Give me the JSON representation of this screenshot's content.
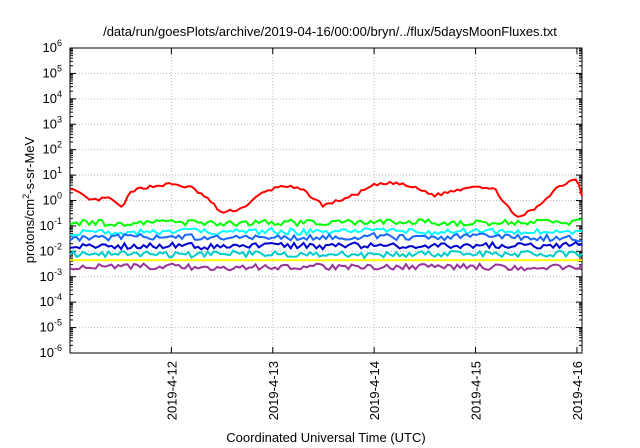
{
  "chart_data": {
    "type": "line",
    "title": "/data/run/goesPlots/archive/2019-04-16/00:00/bryn/../flux/5daysMoonFluxes.txt",
    "xlabel": "Coordinated Universal Time (UTC)",
    "ylabel": "protons/cm2-s-sr-MeV",
    "ylabel_parts": {
      "pre": "protons/cm",
      "sup": "2",
      "post": "-s-sr-MeV"
    },
    "yscale": "log",
    "ylim": [
      -6,
      6
    ],
    "xlim": [
      0,
      5.05
    ],
    "grid": true,
    "y_ticks": [
      {
        "value": -6,
        "base": "10",
        "exp": "-6"
      },
      {
        "value": -5,
        "base": "10",
        "exp": "-5"
      },
      {
        "value": -4,
        "base": "10",
        "exp": "-4"
      },
      {
        "value": -3,
        "base": "10",
        "exp": "-3"
      },
      {
        "value": -2,
        "base": "10",
        "exp": "-2"
      },
      {
        "value": -1,
        "base": "10",
        "exp": "-1"
      },
      {
        "value": 0,
        "base": "10",
        "exp": "0"
      },
      {
        "value": 1,
        "base": "10",
        "exp": "1"
      },
      {
        "value": 2,
        "base": "10",
        "exp": "2"
      },
      {
        "value": 3,
        "base": "10",
        "exp": "3"
      },
      {
        "value": 4,
        "base": "10",
        "exp": "4"
      },
      {
        "value": 5,
        "base": "10",
        "exp": "5"
      },
      {
        "value": 6,
        "base": "10",
        "exp": "6"
      }
    ],
    "x_ticks": [
      {
        "value": 1,
        "label": "2019-4-12"
      },
      {
        "value": 2,
        "label": "2019-4-13"
      },
      {
        "value": 3,
        "label": "2019-4-14"
      },
      {
        "value": 4,
        "label": "2019-4-15"
      },
      {
        "value": 5,
        "label": "2019-4-16"
      }
    ],
    "series": [
      {
        "color": "#ff0000",
        "x": [
          0,
          0.2,
          0.4,
          0.5,
          0.6,
          0.7,
          0.9,
          1.0,
          1.2,
          1.35,
          1.5,
          1.7,
          1.9,
          2.1,
          2.3,
          2.5,
          2.8,
          3.0,
          3.2,
          3.4,
          3.6,
          3.8,
          4.0,
          4.2,
          4.4,
          4.6,
          4.8,
          5.0,
          5.05
        ],
        "y": [
          0.5,
          0.0,
          0.1,
          -0.3,
          0.3,
          0.5,
          0.6,
          0.65,
          0.5,
          0.1,
          -0.5,
          -0.3,
          0.3,
          0.6,
          0.4,
          -0.2,
          0.2,
          0.6,
          0.7,
          0.5,
          0.2,
          0.4,
          0.6,
          0.4,
          -0.7,
          -0.3,
          0.5,
          0.9,
          0.2
        ]
      },
      {
        "color": "#00ff00",
        "x": [
          0,
          0.5,
          1.0,
          1.5,
          2.0,
          2.5,
          3.0,
          3.5,
          4.0,
          4.5,
          5.0,
          5.05
        ],
        "y": [
          -0.85,
          -0.9,
          -0.85,
          -0.9,
          -0.85,
          -0.9,
          -0.85,
          -0.85,
          -0.9,
          -0.85,
          -0.85,
          -0.85
        ]
      },
      {
        "color": "#00ffff",
        "x": [
          0,
          0.5,
          1.0,
          1.5,
          2.0,
          2.5,
          3.0,
          3.5,
          4.0,
          4.5,
          5.0,
          5.05
        ],
        "y": [
          -1.25,
          -1.25,
          -1.2,
          -1.25,
          -1.2,
          -1.25,
          -1.2,
          -1.25,
          -1.2,
          -1.25,
          -1.2,
          -1.2
        ]
      },
      {
        "color": "#1a66ff",
        "x": [
          0,
          0.5,
          1.0,
          1.5,
          2.0,
          2.5,
          3.0,
          3.5,
          4.0,
          4.5,
          5.0,
          5.05
        ],
        "y": [
          -1.5,
          -1.45,
          -1.4,
          -1.5,
          -1.45,
          -1.45,
          -1.4,
          -1.5,
          -1.4,
          -1.45,
          -1.5,
          -1.5
        ]
      },
      {
        "color": "#0000cc",
        "x": [
          0,
          0.5,
          1.0,
          1.5,
          2.0,
          2.5,
          3.0,
          3.5,
          4.0,
          4.5,
          5.0,
          5.05
        ],
        "y": [
          -1.8,
          -1.8,
          -1.75,
          -1.85,
          -1.75,
          -1.8,
          -1.75,
          -1.8,
          -1.75,
          -1.8,
          -1.75,
          -1.8
        ]
      },
      {
        "color": "#00cccc",
        "x": [
          0,
          0.5,
          1.0,
          1.5,
          2.0,
          2.5,
          3.0,
          3.5,
          4.0,
          4.5,
          5.0,
          5.05
        ],
        "y": [
          -2.1,
          -2.1,
          -2.15,
          -2.1,
          -2.1,
          -2.1,
          -2.15,
          -2.1,
          -2.1,
          -2.1,
          -2.1,
          -2.1
        ]
      },
      {
        "color": "#ffff00",
        "x": [
          0,
          5.05
        ],
        "y": [
          -2.35,
          -2.35
        ]
      },
      {
        "color": "#993399",
        "x": [
          0,
          0.5,
          1.0,
          1.5,
          2.0,
          2.5,
          3.0,
          3.5,
          4.0,
          4.5,
          5.0,
          5.05
        ],
        "y": [
          -2.65,
          -2.6,
          -2.6,
          -2.65,
          -2.6,
          -2.6,
          -2.65,
          -2.6,
          -2.6,
          -2.65,
          -2.6,
          -2.6
        ]
      }
    ]
  }
}
